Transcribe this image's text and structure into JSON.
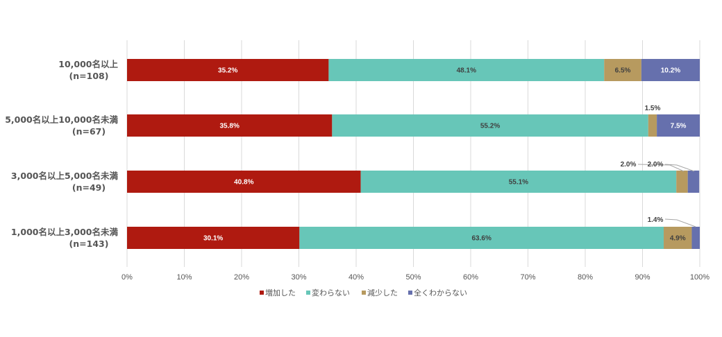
{
  "chart_data": {
    "type": "bar",
    "orientation": "horizontal",
    "stacked": "percent",
    "categories": [
      [
        "10,000名以上",
        "(n=108)"
      ],
      [
        "5,000名以上10,000名未満",
        "(n=67)"
      ],
      [
        "3,000名以上5,000名未満",
        "(n=49)"
      ],
      [
        "1,000名以上3,000名未満",
        "(n=143)"
      ]
    ],
    "series": [
      {
        "name": "増加した",
        "color": "#AF1A10",
        "values": [
          35.2,
          35.8,
          40.8,
          30.1
        ],
        "labels": [
          "35.2%",
          "35.8%",
          "40.8%",
          "30.1%"
        ]
      },
      {
        "name": "変わらない",
        "color": "#67C6B8",
        "values": [
          48.1,
          55.2,
          55.1,
          63.6
        ],
        "labels": [
          "48.1%",
          "55.2%",
          "55.1%",
          "63.6%"
        ]
      },
      {
        "name": "減少した",
        "color": "#B79A5F",
        "values": [
          6.5,
          1.5,
          2.0,
          4.9
        ],
        "labels": [
          "6.5%",
          "1.5%",
          "2.0%",
          "4.9%"
        ]
      },
      {
        "name": "全くわからない",
        "color": "#6670AD",
        "values": [
          10.2,
          7.5,
          2.0,
          1.4
        ],
        "labels": [
          "10.2%",
          "7.5%",
          "2.0%",
          "1.4%"
        ]
      }
    ],
    "xlim": [
      0,
      100
    ],
    "xticks": [
      "0%",
      "10%",
      "20%",
      "30%",
      "40%",
      "50%",
      "60%",
      "70%",
      "80%",
      "90%",
      "100%"
    ],
    "grid": true,
    "legend": "bottom",
    "title": "",
    "xlabel": "",
    "ylabel": ""
  }
}
